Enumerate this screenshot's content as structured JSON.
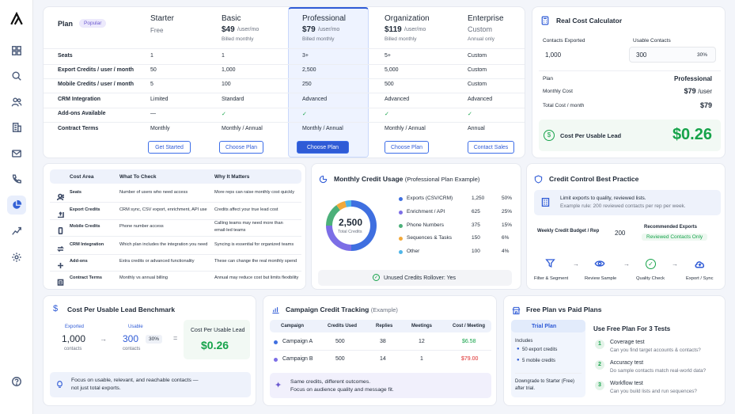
{
  "sidebar": {
    "items": [
      "logo",
      "grid",
      "search",
      "users",
      "building",
      "mail",
      "phone",
      "chart",
      "trend",
      "settings",
      "help"
    ]
  },
  "plans": {
    "plan_label": "Plan",
    "popular": "Popular",
    "columns": [
      {
        "name": "Starter",
        "price": "Free",
        "unit": "",
        "billing": ""
      },
      {
        "name": "Basic",
        "price": "$49",
        "unit": "/user/mo",
        "billing": "Billed monthly"
      },
      {
        "name": "Professional",
        "price": "$79",
        "unit": "/user/mo",
        "billing": "Billed monthly"
      },
      {
        "name": "Organization",
        "price": "$119",
        "unit": "/user/mo",
        "billing": "Billed monthly"
      },
      {
        "name": "Enterprise",
        "price": "Custom",
        "unit": "",
        "billing": "Annual only"
      }
    ],
    "rows": [
      {
        "label": "Seats",
        "values": [
          "1",
          "1",
          "3+",
          "5+",
          "Custom"
        ]
      },
      {
        "label": "Export Credits / user / month",
        "values": [
          "50",
          "1,000",
          "2,500",
          "5,000",
          "Custom"
        ]
      },
      {
        "label": "Mobile Credits / user / month",
        "values": [
          "5",
          "100",
          "250",
          "500",
          "Custom"
        ]
      },
      {
        "label": "CRM Integration",
        "values": [
          "Limited",
          "Standard",
          "Advanced",
          "Advanced",
          "Advanced"
        ]
      },
      {
        "label": "Add-ons Available",
        "values": [
          "—",
          "✓",
          "✓",
          "✓",
          "✓"
        ]
      },
      {
        "label": "Contract Terms",
        "values": [
          "Monthly",
          "Monthly / Annual",
          "Monthly / Annual",
          "Monthly / Annual",
          "Annual"
        ]
      }
    ],
    "buttons": [
      "Get Started",
      "Choose Plan",
      "Choose Plan",
      "Choose Plan",
      "Contact Sales"
    ]
  },
  "calculator": {
    "title": "Real Cost Calculator",
    "contacts_exported_label": "Contacts Exported",
    "contacts_exported": "1,000",
    "usable_contacts_label": "Usable Contacts",
    "usable_contacts": "300",
    "usable_pct": "30%",
    "plan_label": "Plan",
    "plan": "Professional",
    "monthly_cost_label": "Monthly Cost",
    "monthly_cost": "$79",
    "monthly_unit": "/user",
    "total_cost_label": "Total Cost / month",
    "total_cost": "$79",
    "cpul_label": "Cost Per Usable Lead",
    "cpul": "$0.26"
  },
  "cost_area": {
    "headers": [
      "Cost Area",
      "What To Check",
      "Why It Matters"
    ],
    "rows": [
      {
        "area": "Seats",
        "check": "Number of users who need access",
        "why": "More reps can raise monthly cost quickly"
      },
      {
        "area": "Export Credits",
        "check": "CRM sync, CSV export, enrichment, API use",
        "why": "Credits affect your true lead cost"
      },
      {
        "area": "Mobile Credits",
        "check": "Phone number access",
        "why": "Calling teams may need more than",
        "why2": "email-led teams"
      },
      {
        "area": "CRM Integration",
        "check": "Which plan includes the integration you need",
        "why": "Syncing is essential for organized teams"
      },
      {
        "area": "Add-ons",
        "check": "Extra credits or advanced functionality",
        "why": "These can change the real monthly spend"
      },
      {
        "area": "Contract Terms",
        "check": "Monthly vs annual billing",
        "why": "Annual may reduce cost but limits flexibility"
      }
    ]
  },
  "usage": {
    "title": "Monthly Credit Usage",
    "subtitle": "(Professional Plan Example)",
    "total": "2,500",
    "total_label": "Total Credits",
    "rollover": "Unused Credits Rollover: Yes"
  },
  "chart_data": {
    "type": "pie",
    "title": "Monthly Credit Usage",
    "categories": [
      "Exports (CSV/CRM)",
      "Enrichment / API",
      "Phone Numbers",
      "Sequences & Tasks",
      "Other"
    ],
    "values": [
      1250,
      625,
      375,
      150,
      100
    ],
    "percents": [
      "50%",
      "25%",
      "15%",
      "6%",
      "4%"
    ],
    "colors": [
      "#3f6fe0",
      "#7c6ee6",
      "#4cb07a",
      "#f2a93b",
      "#4fb6e8"
    ]
  },
  "best_practice": {
    "title": "Credit Control Best Practice",
    "tip": "Limit exports to quality, reviewed lists.",
    "tip2": "Example rule: 200 reviewed contacts per rep per week.",
    "budget_label": "Weekly Credit Budget / Rep",
    "budget": "200",
    "recommended_label": "Recommended Exports",
    "recommended": "Reviewed Contacts Only",
    "steps": [
      "Filter & Segment",
      "Review Sample",
      "Quality Check",
      "Export / Sync"
    ]
  },
  "benchmark": {
    "title": "Cost Per Usable Lead Benchmark",
    "exported_label": "Exported",
    "exported": "1,000",
    "exported_unit": "contacts",
    "usable_label": "Usable",
    "usable": "300",
    "usable_pct": "30%",
    "usable_unit": "contacts",
    "cpul_label": "Cost Per Usable Lead",
    "cpul": "$0.26",
    "note": "Focus on usable, relevant, and reachable contacts —",
    "note2": "not just total exports."
  },
  "campaign": {
    "title": "Campaign Credit Tracking",
    "subtitle": "(Example)",
    "headers": [
      "Campaign",
      "Credits Used",
      "Replies",
      "Meetings",
      "Cost / Meeting"
    ],
    "rows": [
      {
        "name": "Campaign A",
        "credits": "500",
        "replies": "38",
        "meetings": "12",
        "cost": "$6.58"
      },
      {
        "name": "Campaign B",
        "credits": "500",
        "replies": "14",
        "meetings": "1",
        "cost": "$79.00"
      }
    ],
    "note": "Same credits, different outcomes.",
    "note2": "Focus on audience quality and message fit."
  },
  "freepaid": {
    "title": "Free Plan vs Paid Plans",
    "trial": "Trial Plan",
    "includes": "Includes",
    "items": [
      "50 export credits",
      "5 mobile credits"
    ],
    "downgrade": "Downgrade to Starter (Free)",
    "downgrade2": "after trial.",
    "tests_title": "Use Free Plan For 3 Tests",
    "tests": [
      {
        "n": "1",
        "title": "Coverage test",
        "desc": "Can you find target accounts & contacts?"
      },
      {
        "n": "2",
        "title": "Accuracy test",
        "desc": "Do sample contacts match real-world data?"
      },
      {
        "n": "3",
        "title": "Workflow test",
        "desc": "Can you build lists and run sequences?"
      }
    ]
  }
}
